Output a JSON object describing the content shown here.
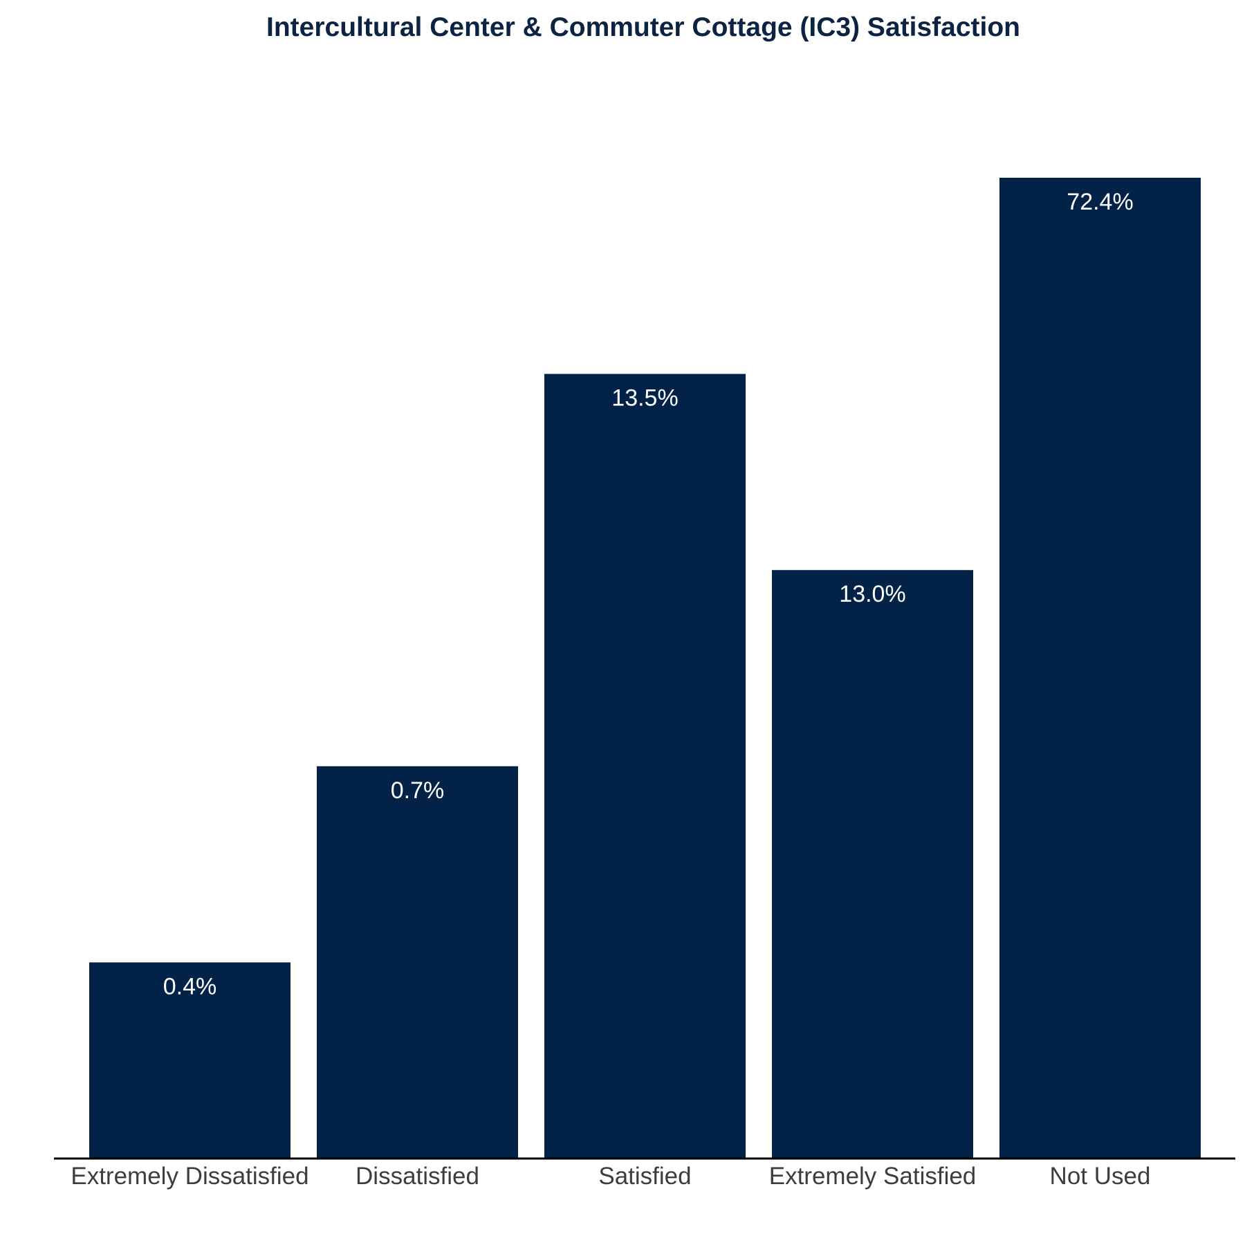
{
  "colors": {
    "bar": "#022247",
    "title": "#0c2442",
    "bar_label": "#ffffff",
    "tick_label": "#3d3d3d",
    "axis": "#000000"
  },
  "chart_data": {
    "type": "bar",
    "title": "Intercultural Center & Commuter Cottage (IC3) Satisfaction",
    "xlabel": "",
    "ylabel": "",
    "categories": [
      "Extremely Dissatisfied",
      "Dissatisfied",
      "Satisfied",
      "Extremely Satisfied",
      "Not Used"
    ],
    "values": [
      0.4,
      0.7,
      13.5,
      13.0,
      72.4
    ],
    "data_labels": [
      "0.4%",
      "0.7%",
      "13.5%",
      "13.0%",
      "72.4%"
    ],
    "ranks": [
      1,
      2,
      4,
      3,
      5
    ],
    "value_scale": "ordinal (bar heights increase by rank, not proportional to value)",
    "grid": false,
    "legend": "none"
  }
}
